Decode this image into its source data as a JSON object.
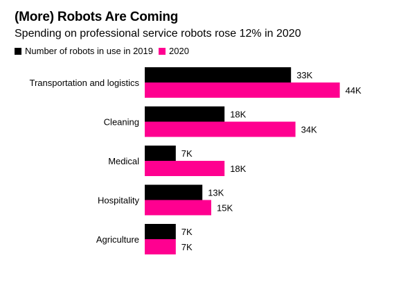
{
  "chart_data": {
    "type": "bar",
    "orientation": "horizontal",
    "title": "(More) Robots Are Coming",
    "subtitle": "Spending on professional service robots rose 12% in 2020",
    "categories": [
      "Transportation and logistics",
      "Cleaning",
      "Medical",
      "Hospitality",
      "Agriculture"
    ],
    "series": [
      {
        "name": "Number of robots in use in 2019",
        "color": "#000000",
        "values": [
          33,
          18,
          7,
          13,
          7
        ],
        "labels": [
          "33K",
          "18K",
          "7K",
          "13K",
          "7K"
        ]
      },
      {
        "name": "2020",
        "color": "#ff0090",
        "values": [
          44,
          34,
          18,
          15,
          7
        ],
        "labels": [
          "44K",
          "34K",
          "18K",
          "15K",
          "7K"
        ]
      }
    ],
    "xlim": [
      0,
      44
    ],
    "grid": false,
    "legend_position": "top-left"
  }
}
